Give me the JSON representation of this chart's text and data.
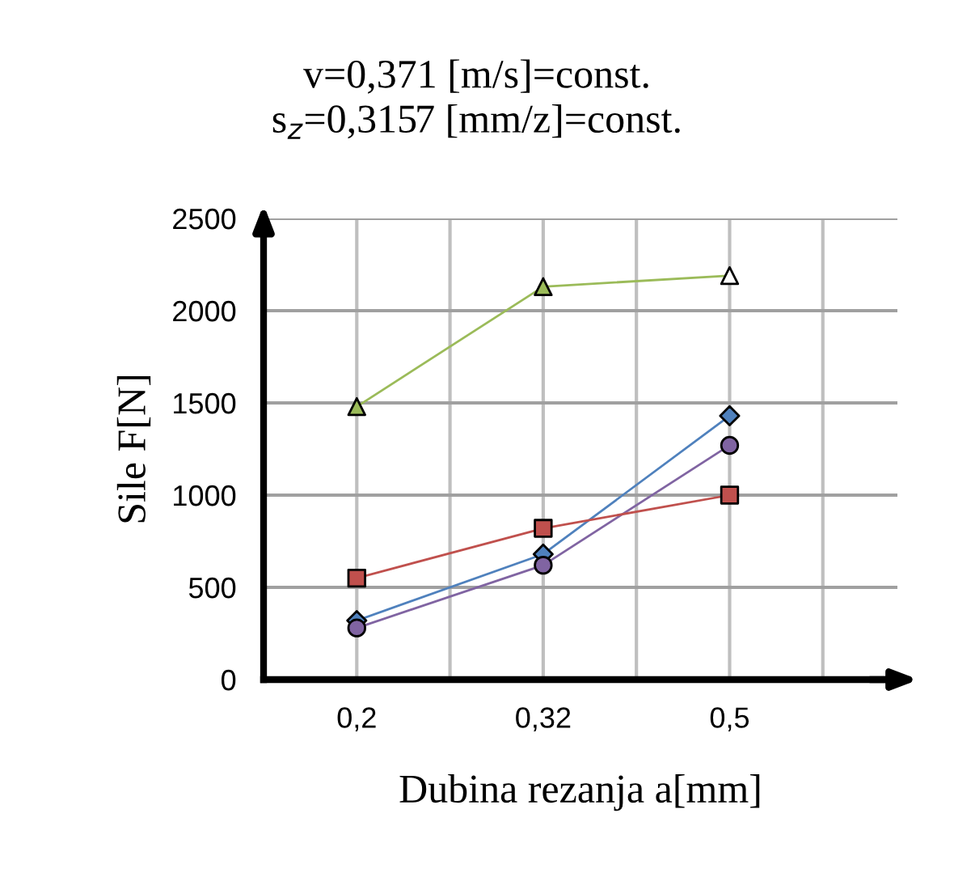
{
  "chart_data": {
    "type": "line",
    "title": "v=0,371 [m/s]=const.\ns$_{z}$=0,3157 [mm/z]=const.",
    "xlabel": "Dubina rezanja a[mm]",
    "ylabel": "Sile F[N]",
    "categories": [
      "0,2",
      "0,32",
      "0,5"
    ],
    "series": [
      {
        "color": "#9bbb59",
        "colors": [
          "#9bbb59",
          "#9bbb59",
          "#ffffff"
        ],
        "marker": "triangle",
        "values": [
          1480,
          2130,
          2190
        ]
      },
      {
        "color": "#4f81bd",
        "marker": "diamond",
        "values": [
          320,
          680,
          1430
        ]
      },
      {
        "color": "#8064a2",
        "marker": "circle",
        "values": [
          280,
          620,
          1270
        ]
      },
      {
        "color": "#c0504d",
        "marker": "square",
        "values": [
          550,
          820,
          1000
        ]
      }
    ],
    "ylim": [
      0,
      2500
    ],
    "yticks": [
      0,
      500,
      1000,
      1500,
      2000,
      2500
    ],
    "grid": true,
    "legend": false
  }
}
